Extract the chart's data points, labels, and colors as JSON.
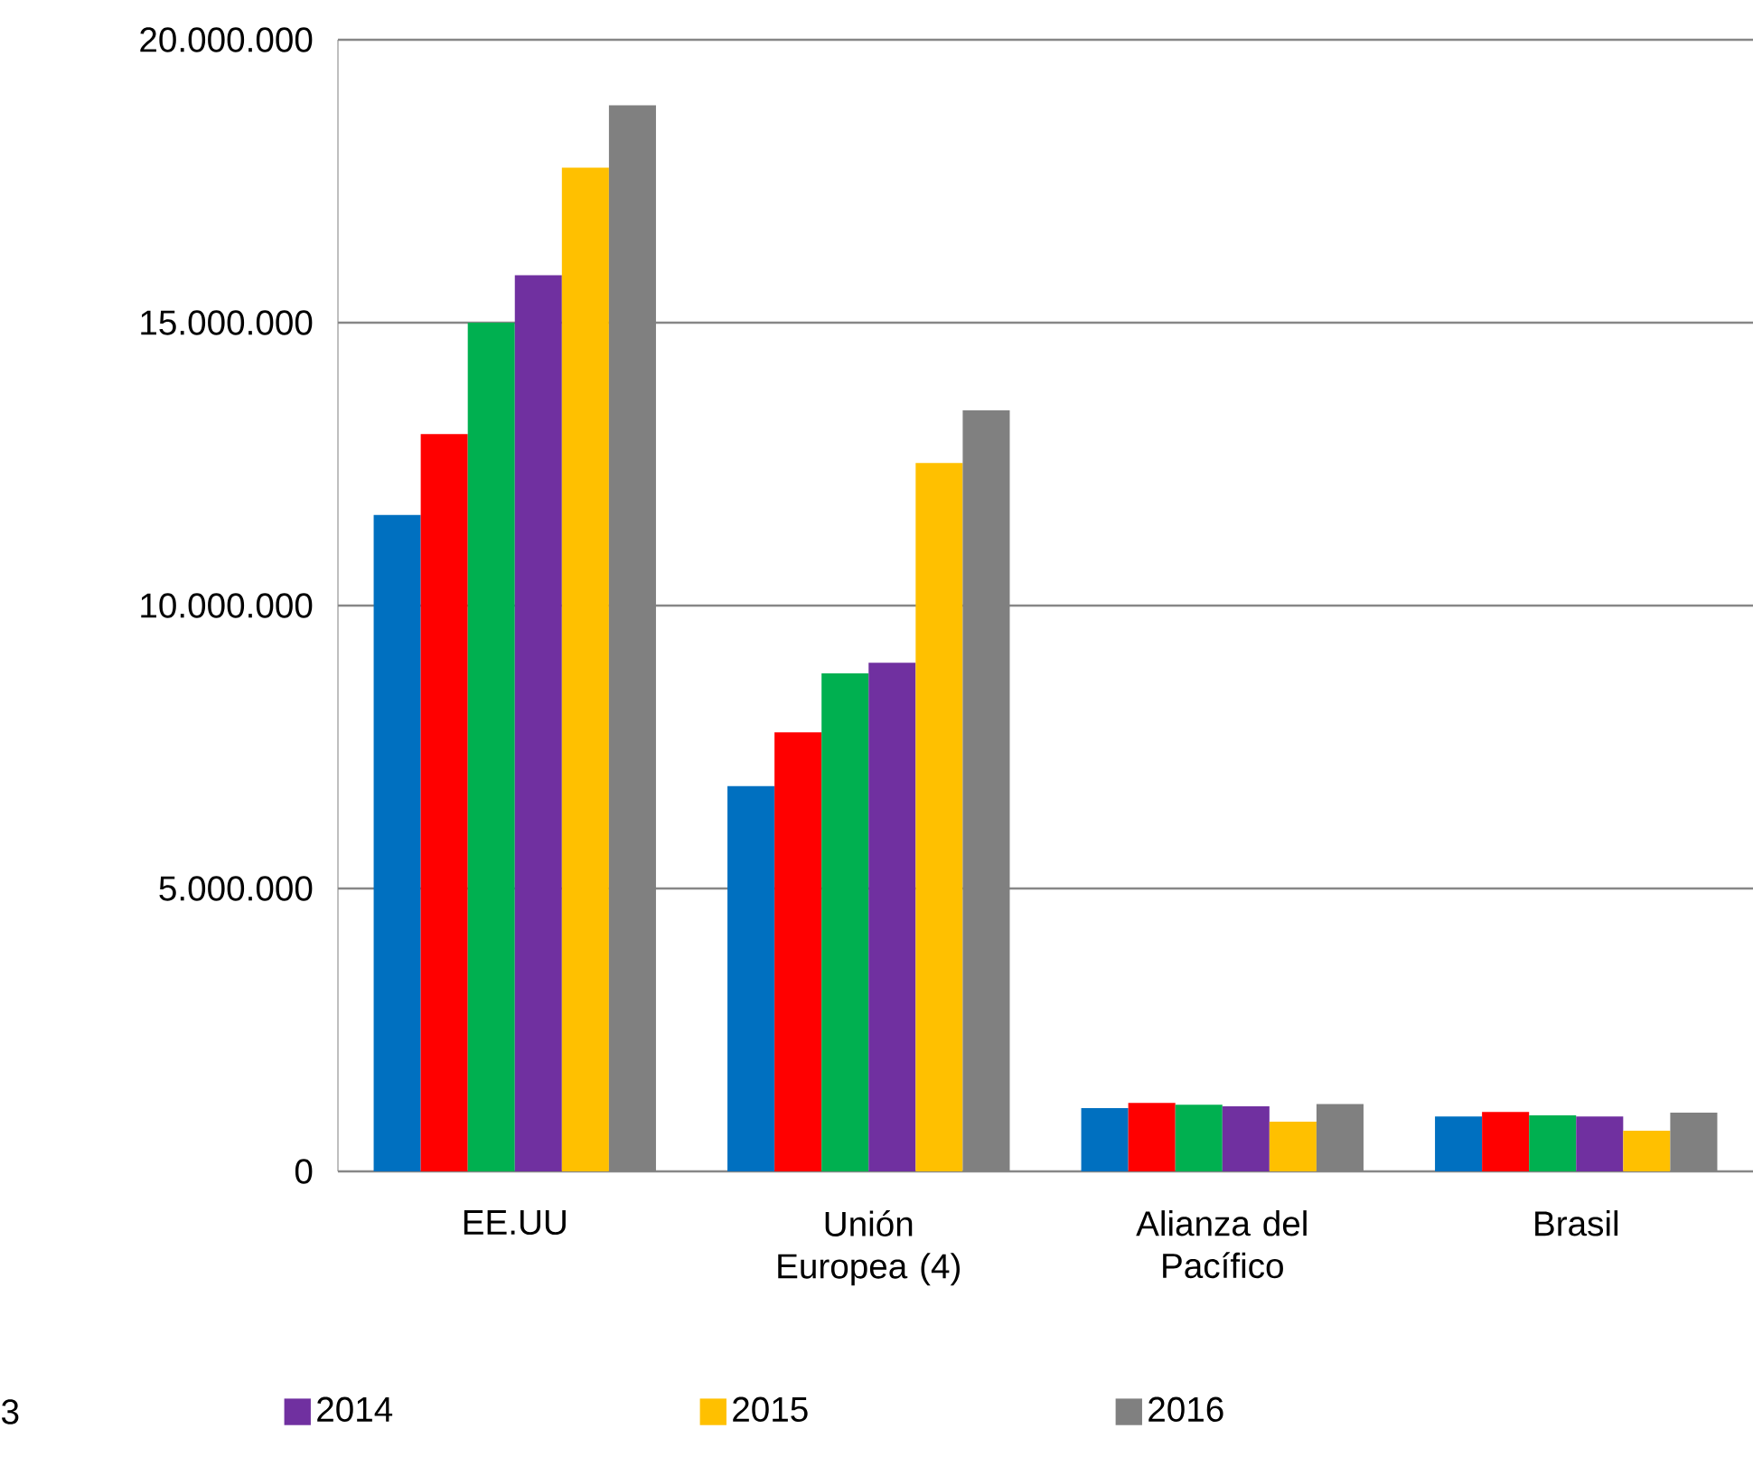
{
  "chart_data": {
    "type": "bar",
    "categories": [
      "EE.UU",
      "Unión Europea (4)",
      "Alianza del Pacífico",
      "Brasil"
    ],
    "series": [
      {
        "color": "#0070c0",
        "values": [
          11600000,
          6810000,
          1120000,
          970000
        ]
      },
      {
        "color": "#ff0000",
        "values": [
          13030000,
          7760000,
          1210000,
          1050000
        ]
      },
      {
        "color": "#00b050",
        "values": [
          15000000,
          8800000,
          1180000,
          990000
        ]
      },
      {
        "name": "2014",
        "color": "#7030a0",
        "values": [
          15840000,
          8990000,
          1150000,
          970000
        ]
      },
      {
        "name": "2015",
        "color": "#ffc000",
        "values": [
          17740000,
          12520000,
          880000,
          720000
        ]
      },
      {
        "name": "2016",
        "color": "#808080",
        "values": [
          18840000,
          13450000,
          1190000,
          1040000
        ]
      }
    ],
    "ylim": [
      0,
      20000000
    ],
    "yticks": [
      {
        "value": 0,
        "label": "0"
      },
      {
        "value": 5000000,
        "label": "5.000.000"
      },
      {
        "value": 10000000,
        "label": "10.000.000"
      },
      {
        "value": 15000000,
        "label": "15.000.000"
      },
      {
        "value": 20000000,
        "label": "20.000.000"
      }
    ],
    "grid": "y",
    "legend": "bottom",
    "annotations": [
      "3"
    ]
  }
}
